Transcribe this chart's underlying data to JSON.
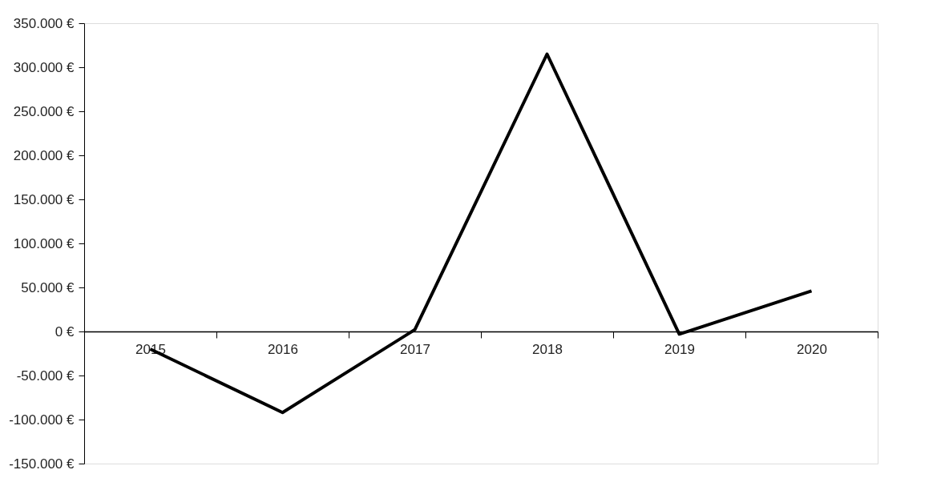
{
  "chart_data": {
    "type": "line",
    "categories": [
      "2015",
      "2016",
      "2017",
      "2018",
      "2019",
      "2020"
    ],
    "series": [
      {
        "color": "#000000",
        "values": [
          -20000,
          -92000,
          2000,
          315000,
          -3000,
          46000
        ]
      }
    ],
    "ylim": [
      -150000,
      350000
    ],
    "yticks": [
      {
        "value": -150000,
        "label": "-150.000 €"
      },
      {
        "value": -100000,
        "label": "-100.000 €"
      },
      {
        "value": -50000,
        "label": "-50.000 €"
      },
      {
        "value": 0,
        "label": "0 €"
      },
      {
        "value": 50000,
        "label": "50.000 €"
      },
      {
        "value": 100000,
        "label": "100.000 €"
      },
      {
        "value": 150000,
        "label": "150.000 €"
      },
      {
        "value": 200000,
        "label": "200.000 €"
      },
      {
        "value": 250000,
        "label": "250.000 €"
      },
      {
        "value": 300000,
        "label": "300.000 €"
      },
      {
        "value": 350000,
        "label": "350.000 €"
      }
    ],
    "grid": false,
    "marker": "none",
    "line_style": "solid"
  }
}
